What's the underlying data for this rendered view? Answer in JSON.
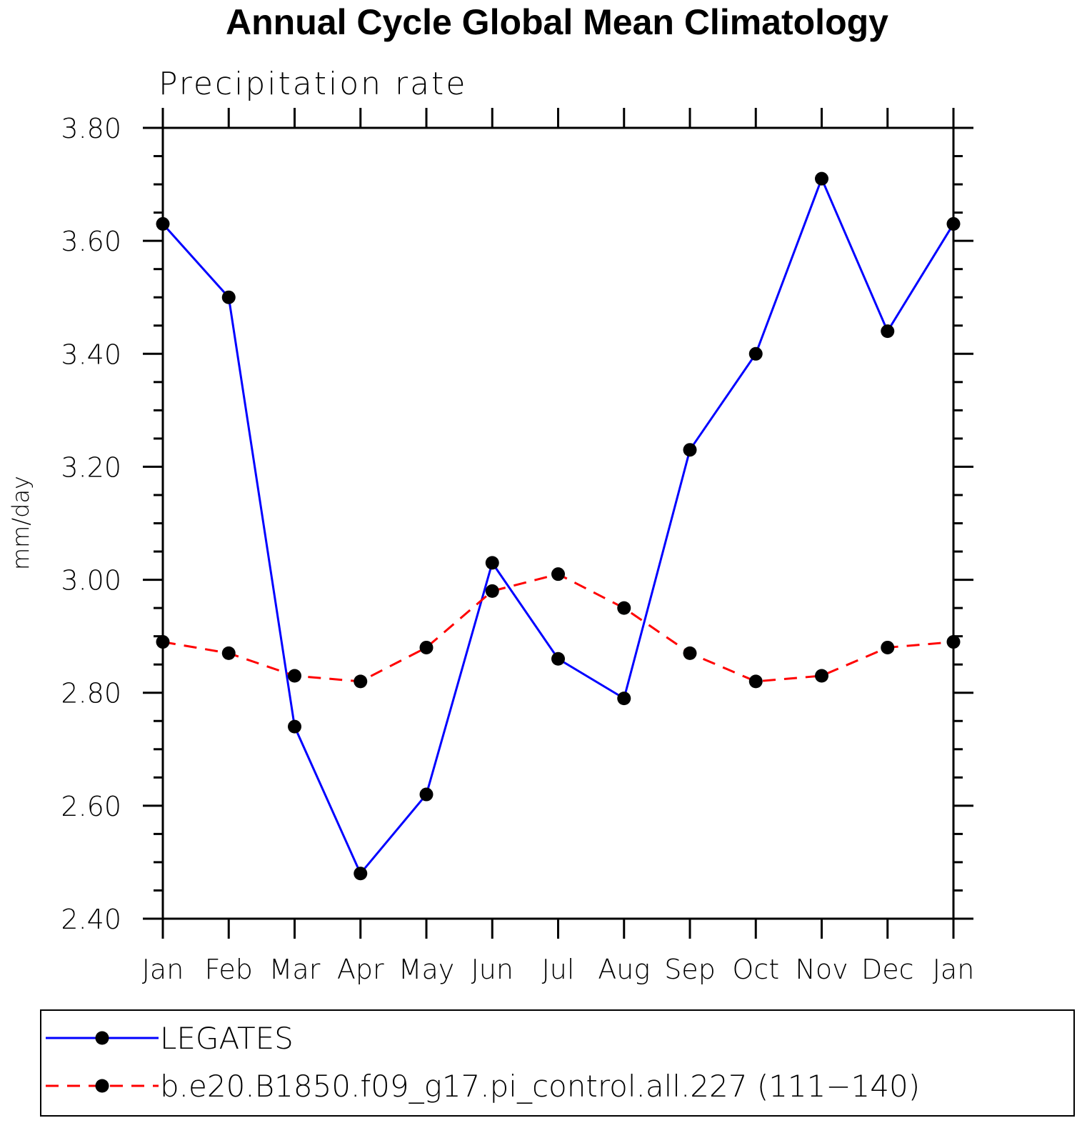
{
  "chart_data": {
    "type": "line",
    "title": "Annual Cycle Global Mean Climatology",
    "subtitle": "Precipitation rate",
    "xlabel": "",
    "ylabel": "mm/day",
    "categories": [
      "Jan",
      "Feb",
      "Mar",
      "Apr",
      "May",
      "Jun",
      "Jul",
      "Aug",
      "Sep",
      "Oct",
      "Nov",
      "Dec",
      "Jan"
    ],
    "ylim": [
      2.4,
      3.8
    ],
    "yticks": [
      "2.40",
      "2.60",
      "2.80",
      "3.00",
      "3.20",
      "3.40",
      "3.60",
      "3.80"
    ],
    "grid": false,
    "legend_position": "bottom",
    "series": [
      {
        "name": "LEGATES",
        "color": "#0000ff",
        "line_style": "solid",
        "marker": "filled-circle",
        "values": [
          3.63,
          3.5,
          2.74,
          2.48,
          2.62,
          3.03,
          2.86,
          2.79,
          3.23,
          3.4,
          3.71,
          3.44,
          3.63
        ]
      },
      {
        "name": "b.e20.B1850.f09_g17.pi_control.all.227 (111−140)",
        "color": "#ff0000",
        "line_style": "dashed",
        "marker": "filled-circle",
        "values": [
          2.89,
          2.87,
          2.83,
          2.82,
          2.88,
          2.98,
          3.01,
          2.95,
          2.87,
          2.82,
          2.83,
          2.88,
          2.89
        ]
      }
    ]
  }
}
